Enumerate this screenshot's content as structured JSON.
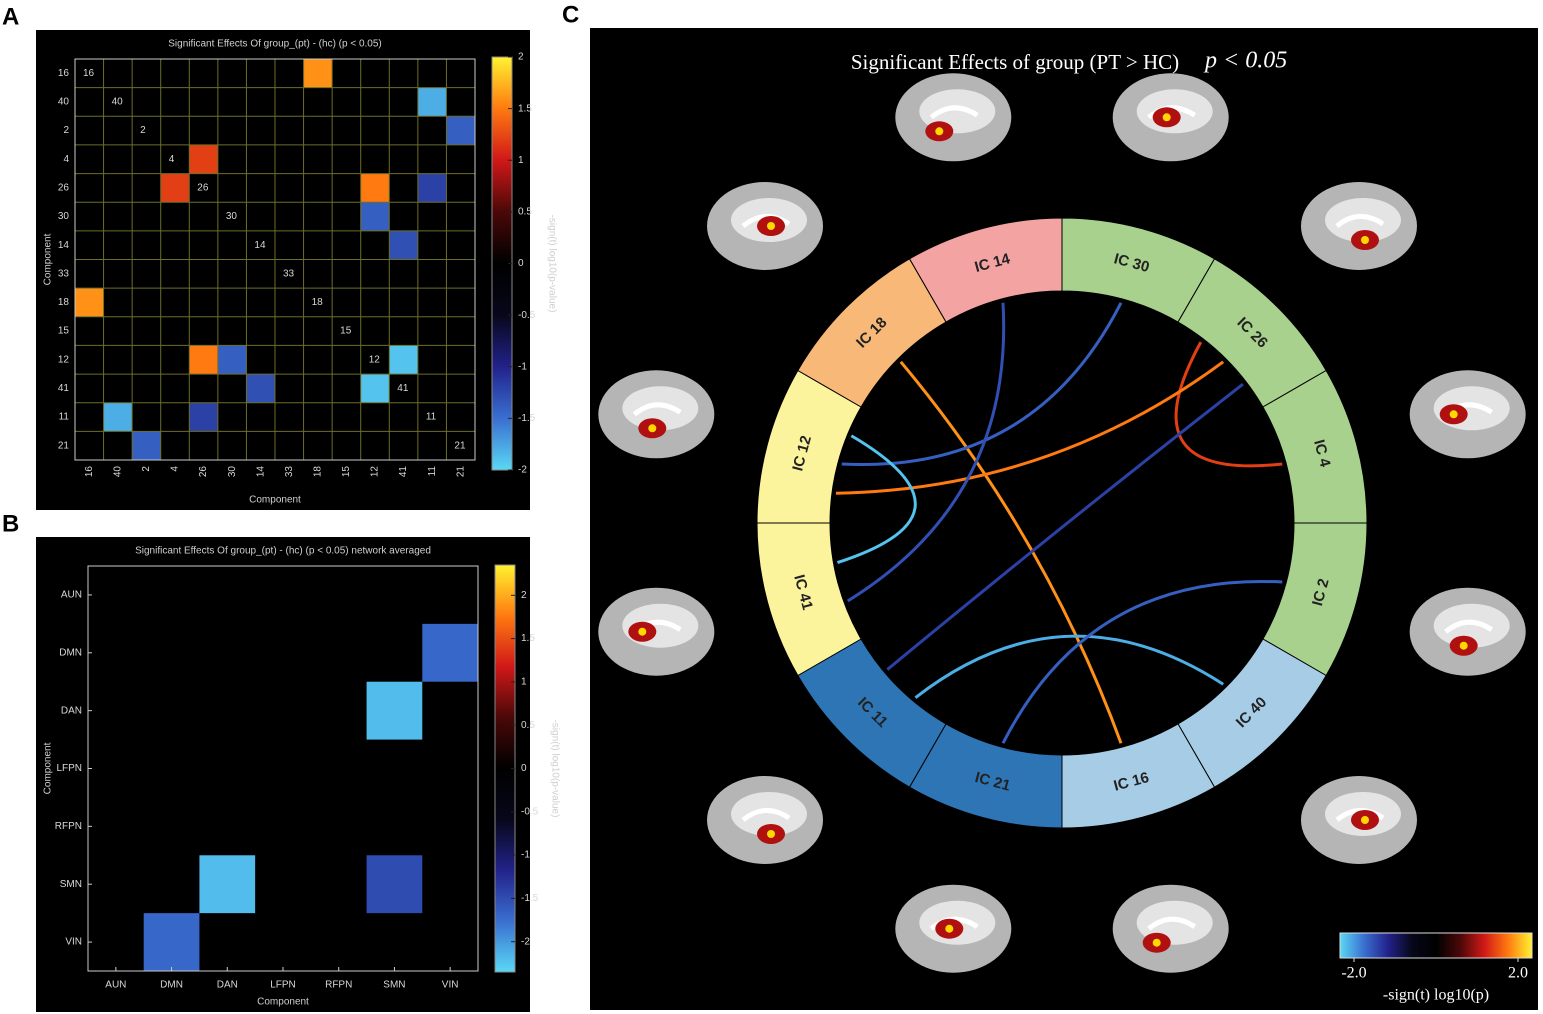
{
  "chart_data": [
    {
      "type": "heatmap",
      "label": "A",
      "title": "Significant Effects Of group_(pt) - (hc) (p < 0.05)",
      "x_label": "Component",
      "y_label": "Component",
      "colorbar_label": "-sign(t) log10(p-value)",
      "categories": [
        "16",
        "40",
        "2",
        "4",
        "26",
        "30",
        "14",
        "33",
        "18",
        "15",
        "12",
        "41",
        "11",
        "21"
      ],
      "values": [
        [
          null,
          null,
          null,
          null,
          null,
          null,
          null,
          null,
          1.6,
          null,
          null,
          null,
          null,
          null
        ],
        [
          null,
          null,
          null,
          null,
          null,
          null,
          null,
          null,
          null,
          null,
          null,
          null,
          -1.8,
          null
        ],
        [
          null,
          null,
          null,
          null,
          null,
          null,
          null,
          null,
          null,
          null,
          null,
          null,
          null,
          -1.4
        ],
        [
          null,
          null,
          null,
          null,
          1.2,
          null,
          null,
          null,
          null,
          null,
          null,
          null,
          null,
          null
        ],
        [
          null,
          null,
          null,
          1.2,
          null,
          null,
          null,
          null,
          null,
          null,
          1.5,
          null,
          -1.2,
          null
        ],
        [
          null,
          null,
          null,
          null,
          null,
          null,
          null,
          null,
          null,
          null,
          -1.4,
          null,
          null,
          null
        ],
        [
          null,
          null,
          null,
          null,
          null,
          null,
          null,
          null,
          null,
          null,
          null,
          -1.3,
          null,
          null
        ],
        [
          null,
          null,
          null,
          null,
          null,
          null,
          null,
          null,
          null,
          null,
          null,
          null,
          null,
          null
        ],
        [
          1.6,
          null,
          null,
          null,
          null,
          null,
          null,
          null,
          null,
          null,
          null,
          null,
          null,
          null
        ],
        [
          null,
          null,
          null,
          null,
          null,
          null,
          null,
          null,
          null,
          null,
          null,
          null,
          null,
          null
        ],
        [
          null,
          null,
          null,
          null,
          1.5,
          -1.4,
          null,
          null,
          null,
          null,
          null,
          -1.9,
          null,
          null
        ],
        [
          null,
          null,
          null,
          null,
          null,
          null,
          -1.3,
          null,
          null,
          null,
          -1.9,
          null,
          null,
          null
        ],
        [
          null,
          -1.8,
          null,
          null,
          -1.2,
          null,
          null,
          null,
          null,
          null,
          null,
          null,
          null,
          null
        ],
        [
          null,
          null,
          -1.4,
          null,
          null,
          null,
          null,
          null,
          null,
          null,
          null,
          null,
          null,
          null
        ]
      ],
      "diagonal_labels": true,
      "grid": true,
      "clim": [
        -2,
        2
      ],
      "cticks": [
        -2,
        -1.5,
        -1,
        -0.5,
        0,
        0.5,
        1,
        1.5,
        2
      ],
      "colormap": [
        "#5ad8f5",
        "#3a6fd0",
        "#22228a",
        "#07071a",
        "#000000",
        "#4a0808",
        "#d01818",
        "#ff7a10",
        "#fff230"
      ]
    },
    {
      "type": "heatmap",
      "label": "B",
      "title": "Significant Effects Of group_(pt) - (hc) (p < 0.05) network averaged",
      "x_label": "Component",
      "y_label": "Component",
      "colorbar_label": "-sign(t) log10(p-value)",
      "categories": [
        "AUN",
        "DMN",
        "DAN",
        "LFPN",
        "RFPN",
        "SMN",
        "VIN"
      ],
      "values": [
        [
          null,
          null,
          null,
          null,
          null,
          null,
          null
        ],
        [
          null,
          null,
          null,
          null,
          null,
          null,
          -1.7
        ],
        [
          null,
          null,
          null,
          null,
          null,
          -2.2,
          null
        ],
        [
          null,
          null,
          null,
          null,
          null,
          null,
          null
        ],
        [
          null,
          null,
          null,
          null,
          null,
          null,
          null
        ],
        [
          null,
          null,
          -2.2,
          null,
          null,
          -1.5,
          null
        ],
        [
          null,
          -1.7,
          null,
          null,
          null,
          null,
          null
        ]
      ],
      "diagonal_labels": false,
      "grid": false,
      "clim": [
        -2.35,
        2.35
      ],
      "cticks": [
        -2,
        -1.5,
        -1,
        -0.5,
        0,
        0.5,
        1,
        1.5,
        2
      ],
      "colormap": [
        "#5ad8f5",
        "#3a6fd0",
        "#22228a",
        "#07071a",
        "#000000",
        "#4a0808",
        "#d01818",
        "#ff7a10",
        "#fff230"
      ]
    },
    {
      "type": "chord",
      "label": "C",
      "title": "Significant Effects of group (PT > HC)",
      "subtitle": "p < 0.05",
      "segments": [
        {
          "name": "IC 14",
          "color": "#f4a3a3"
        },
        {
          "name": "IC 30",
          "color": "#a9d18e"
        },
        {
          "name": "IC 26",
          "color": "#a9d18e"
        },
        {
          "name": "IC 4",
          "color": "#a9d18e"
        },
        {
          "name": "IC 2",
          "color": "#a9d18e"
        },
        {
          "name": "IC 40",
          "color": "#a7cde6"
        },
        {
          "name": "IC 16",
          "color": "#a7cde6"
        },
        {
          "name": "IC 21",
          "color": "#2e75b6"
        },
        {
          "name": "IC 11",
          "color": "#2e75b6"
        },
        {
          "name": "IC 41",
          "color": "#fbf49c"
        },
        {
          "name": "IC 12",
          "color": "#fbf49c"
        },
        {
          "name": "IC 18",
          "color": "#f8b878"
        }
      ],
      "links": [
        {
          "source": "IC 16",
          "target": "IC 18",
          "value": 1.6
        },
        {
          "source": "IC 40",
          "target": "IC 11",
          "value": -1.8
        },
        {
          "source": "IC 2",
          "target": "IC 21",
          "value": -1.4
        },
        {
          "source": "IC 4",
          "target": "IC 26",
          "value": 1.2
        },
        {
          "source": "IC 26",
          "target": "IC 12",
          "value": 1.5
        },
        {
          "source": "IC 26",
          "target": "IC 11",
          "value": -1.2
        },
        {
          "source": "IC 30",
          "target": "IC 12",
          "value": -1.4
        },
        {
          "source": "IC 14",
          "target": "IC 41",
          "value": -1.3
        },
        {
          "source": "IC 12",
          "target": "IC 41",
          "value": -1.9
        }
      ],
      "colorbar_label": "-sign(t) log10(p)",
      "clim": [
        -2,
        2
      ],
      "cticks": [
        {
          "value": -2,
          "label": "-2.0"
        },
        {
          "value": 2,
          "label": "2.0"
        }
      ],
      "colormap": [
        "#5ad8f5",
        "#3a6fd0",
        "#22228a",
        "#07071a",
        "#000000",
        "#4a0808",
        "#d01818",
        "#ff7a10",
        "#fff230"
      ]
    }
  ]
}
